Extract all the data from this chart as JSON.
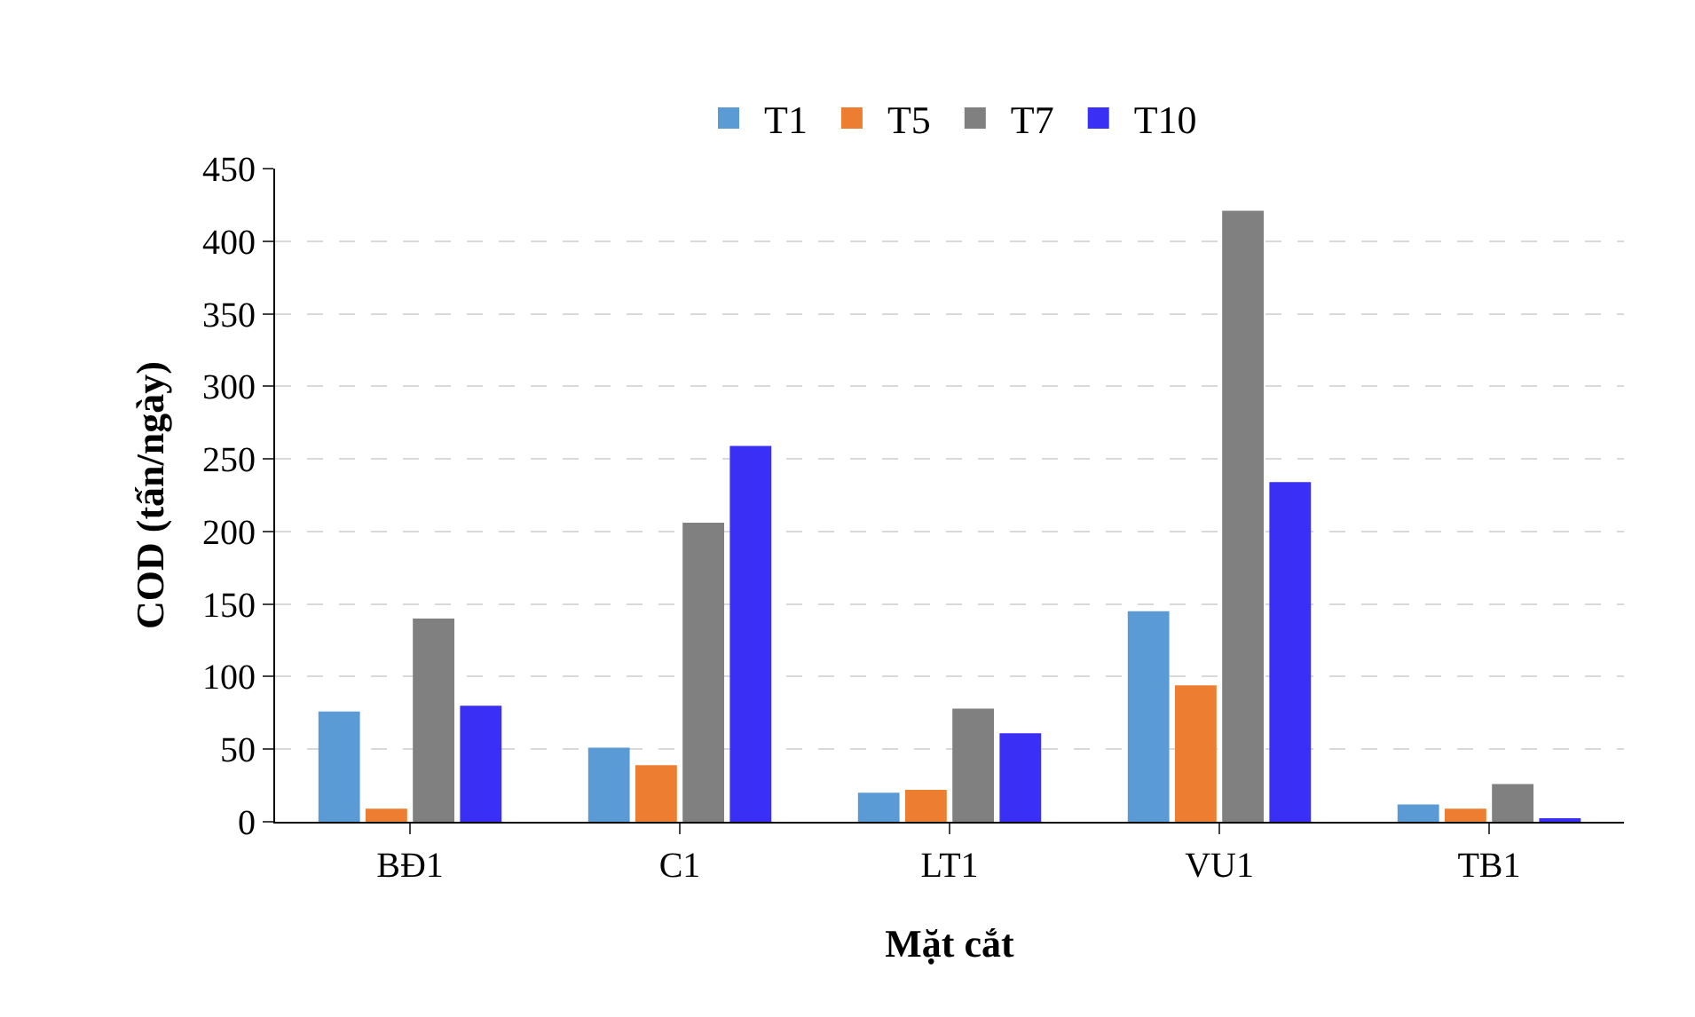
{
  "chart_data": {
    "type": "bar",
    "xlabel": "Mặt cắt",
    "ylabel": "COD (tấn/ngày)",
    "categories": [
      "BĐ1",
      "C1",
      "LT1",
      "VU1",
      "TB1"
    ],
    "series": [
      {
        "name": "T1",
        "color": "#5b9bd5",
        "values": [
          76,
          51,
          20,
          145,
          12
        ]
      },
      {
        "name": "T5",
        "color": "#ed7d31",
        "values": [
          9,
          39,
          22,
          94,
          9
        ]
      },
      {
        "name": "T7",
        "color": "#808080",
        "values": [
          140,
          206,
          78,
          421,
          26
        ]
      },
      {
        "name": "T10",
        "color": "#3a2ff5",
        "values": [
          80,
          259,
          61,
          234,
          2
        ]
      }
    ],
    "ylim": [
      0,
      450
    ],
    "yticks": [
      0,
      50,
      100,
      150,
      200,
      250,
      300,
      350,
      400,
      450
    ],
    "grid": "y",
    "legend": "top"
  }
}
